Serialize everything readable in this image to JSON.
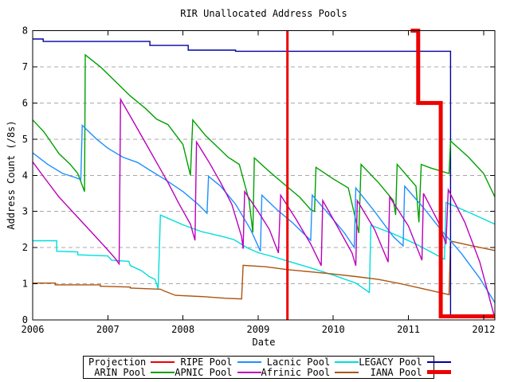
{
  "chart_data": {
    "type": "line",
    "title": "RIR Unallocated Address Pools",
    "xlabel": "Date",
    "ylabel": "Address Count (/8s)",
    "x_range": [
      2006,
      2012.15
    ],
    "y_range": [
      0,
      8
    ],
    "x_ticks": [
      2006,
      2007,
      2008,
      2009,
      2010,
      2011,
      2012
    ],
    "y_ticks": [
      0,
      1,
      2,
      3,
      4,
      5,
      6,
      7,
      8
    ],
    "grid": "horizontal-dashed-gray",
    "grid_color": "#a8a8a8",
    "legend_position": "bottom-center-boxed",
    "legend_layout": [
      [
        6,
        4,
        0,
        2
      ],
      [
        3,
        5,
        1,
        7
      ]
    ],
    "series": [
      {
        "name": "Lacnic Pool",
        "color": "#00dddd",
        "width": 1.4,
        "points": [
          [
            2006,
            2.19
          ],
          [
            2006.32,
            2.19
          ],
          [
            2006.32,
            1.9
          ],
          [
            2006.6,
            1.88
          ],
          [
            2006.6,
            1.8
          ],
          [
            2007,
            1.77
          ],
          [
            2007.05,
            1.65
          ],
          [
            2007.28,
            1.62
          ],
          [
            2007.3,
            1.5
          ],
          [
            2007.45,
            1.36
          ],
          [
            2007.55,
            1.2
          ],
          [
            2007.63,
            1.12
          ],
          [
            2007.67,
            0.86
          ],
          [
            2007.7,
            2.9
          ],
          [
            2008,
            2.63
          ],
          [
            2008.25,
            2.44
          ],
          [
            2008.5,
            2.32
          ],
          [
            2008.68,
            2.22
          ],
          [
            2008.85,
            2.0
          ],
          [
            2009,
            1.86
          ],
          [
            2009.2,
            1.75
          ],
          [
            2009.39,
            1.63
          ],
          [
            2009.7,
            1.44
          ],
          [
            2010,
            1.24
          ],
          [
            2010.3,
            1.02
          ],
          [
            2010.48,
            0.76
          ],
          [
            2010.5,
            2.62
          ],
          [
            2010.8,
            2.38
          ],
          [
            2011.1,
            2.1
          ],
          [
            2011.3,
            1.88
          ],
          [
            2011.48,
            1.68
          ],
          [
            2011.5,
            3.25
          ],
          [
            2011.8,
            2.98
          ],
          [
            2012.15,
            2.65
          ]
        ]
      },
      {
        "name": "Afrinic Pool",
        "color": "#ad5410",
        "width": 1.4,
        "points": [
          [
            2006,
            1.02
          ],
          [
            2006.3,
            1.02
          ],
          [
            2006.3,
            0.97
          ],
          [
            2006.9,
            0.97
          ],
          [
            2006.9,
            0.93
          ],
          [
            2007.3,
            0.91
          ],
          [
            2007.3,
            0.88
          ],
          [
            2007.7,
            0.85
          ],
          [
            2007.75,
            0.8
          ],
          [
            2007.9,
            0.68
          ],
          [
            2008.3,
            0.64
          ],
          [
            2008.55,
            0.6
          ],
          [
            2008.78,
            0.58
          ],
          [
            2008.8,
            1.51
          ],
          [
            2009.1,
            1.47
          ],
          [
            2009.39,
            1.39
          ],
          [
            2009.7,
            1.33
          ],
          [
            2010,
            1.27
          ],
          [
            2010.3,
            1.2
          ],
          [
            2010.6,
            1.12
          ],
          [
            2010.9,
            1.0
          ],
          [
            2011.2,
            0.86
          ],
          [
            2011.54,
            0.7
          ],
          [
            2011.56,
            2.18
          ],
          [
            2011.8,
            2.07
          ],
          [
            2012.15,
            1.92
          ]
        ]
      },
      {
        "name": "LEGACY Pool",
        "color": "#0000a0",
        "width": 1.4,
        "points": [
          [
            2006,
            7.77
          ],
          [
            2006.14,
            7.77
          ],
          [
            2006.14,
            7.7
          ],
          [
            2007.56,
            7.7
          ],
          [
            2007.56,
            7.59
          ],
          [
            2008.07,
            7.59
          ],
          [
            2008.07,
            7.46
          ],
          [
            2008.7,
            7.46
          ],
          [
            2008.7,
            7.43
          ],
          [
            2011.56,
            7.43
          ],
          [
            2011.56,
            0.12
          ],
          [
            2012.15,
            0.12
          ]
        ]
      },
      {
        "name": "ARIN Pool",
        "color": "#00a000",
        "width": 1.4,
        "points": [
          [
            2006,
            5.53
          ],
          [
            2006.15,
            5.2
          ],
          [
            2006.2,
            5.05
          ],
          [
            2006.35,
            4.6
          ],
          [
            2006.5,
            4.3
          ],
          [
            2006.6,
            4.05
          ],
          [
            2006.69,
            3.55
          ],
          [
            2006.7,
            7.33
          ],
          [
            2006.9,
            7.0
          ],
          [
            2007.05,
            6.7
          ],
          [
            2007.3,
            6.19
          ],
          [
            2007.5,
            5.85
          ],
          [
            2007.65,
            5.55
          ],
          [
            2007.8,
            5.4
          ],
          [
            2008,
            4.85
          ],
          [
            2008.1,
            4.0
          ],
          [
            2008.13,
            5.53
          ],
          [
            2008.3,
            5.1
          ],
          [
            2008.45,
            4.8
          ],
          [
            2008.6,
            4.5
          ],
          [
            2008.75,
            4.3
          ],
          [
            2008.88,
            3.3
          ],
          [
            2008.93,
            2.42
          ],
          [
            2008.95,
            4.48
          ],
          [
            2009.15,
            4.1
          ],
          [
            2009.35,
            3.75
          ],
          [
            2009.55,
            3.4
          ],
          [
            2009.7,
            3.05
          ],
          [
            2009.75,
            3.0
          ],
          [
            2009.77,
            4.22
          ],
          [
            2010,
            3.9
          ],
          [
            2010.2,
            3.65
          ],
          [
            2010.34,
            2.4
          ],
          [
            2010.37,
            4.3
          ],
          [
            2010.6,
            3.8
          ],
          [
            2010.8,
            3.3
          ],
          [
            2010.83,
            2.9
          ],
          [
            2010.85,
            4.3
          ],
          [
            2011.1,
            3.7
          ],
          [
            2011.14,
            2.7
          ],
          [
            2011.17,
            4.3
          ],
          [
            2011.3,
            4.2
          ],
          [
            2011.54,
            4.05
          ],
          [
            2011.56,
            4.95
          ],
          [
            2011.8,
            4.5
          ],
          [
            2012,
            4.05
          ],
          [
            2012.15,
            3.4
          ]
        ]
      },
      {
        "name": "RIPE Pool",
        "color": "#1e90ff",
        "width": 1.4,
        "points": [
          [
            2006,
            4.62
          ],
          [
            2006.2,
            4.3
          ],
          [
            2006.4,
            4.05
          ],
          [
            2006.55,
            3.95
          ],
          [
            2006.64,
            3.88
          ],
          [
            2006.66,
            5.38
          ],
          [
            2006.85,
            5.0
          ],
          [
            2007,
            4.75
          ],
          [
            2007.2,
            4.5
          ],
          [
            2007.4,
            4.35
          ],
          [
            2007.55,
            4.15
          ],
          [
            2007.75,
            3.9
          ],
          [
            2008,
            3.55
          ],
          [
            2008.2,
            3.2
          ],
          [
            2008.32,
            2.95
          ],
          [
            2008.34,
            3.97
          ],
          [
            2008.5,
            3.7
          ],
          [
            2008.7,
            3.2
          ],
          [
            2008.9,
            2.5
          ],
          [
            2009.03,
            1.9
          ],
          [
            2009.05,
            3.45
          ],
          [
            2009.25,
            3.05
          ],
          [
            2009.45,
            2.7
          ],
          [
            2009.65,
            2.3
          ],
          [
            2009.7,
            2.2
          ],
          [
            2009.72,
            3.45
          ],
          [
            2009.95,
            2.9
          ],
          [
            2010.15,
            2.4
          ],
          [
            2010.28,
            2.0
          ],
          [
            2010.3,
            3.65
          ],
          [
            2010.55,
            3.0
          ],
          [
            2010.8,
            2.3
          ],
          [
            2010.93,
            2.05
          ],
          [
            2010.95,
            3.7
          ],
          [
            2011.2,
            3.1
          ],
          [
            2011.45,
            2.45
          ],
          [
            2011.7,
            1.85
          ],
          [
            2011.95,
            1.15
          ],
          [
            2012.15,
            0.48
          ]
        ]
      },
      {
        "name": "APNIC Pool",
        "color": "#bb00bb",
        "width": 1.4,
        "points": [
          [
            2006,
            4.37
          ],
          [
            2006.15,
            3.95
          ],
          [
            2006.35,
            3.4
          ],
          [
            2006.55,
            2.95
          ],
          [
            2006.75,
            2.5
          ],
          [
            2006.95,
            2.05
          ],
          [
            2007.1,
            1.7
          ],
          [
            2007.15,
            1.55
          ],
          [
            2007.17,
            6.1
          ],
          [
            2007.35,
            5.45
          ],
          [
            2007.5,
            4.9
          ],
          [
            2007.65,
            4.35
          ],
          [
            2007.8,
            3.8
          ],
          [
            2007.95,
            3.2
          ],
          [
            2008.1,
            2.65
          ],
          [
            2008.16,
            2.2
          ],
          [
            2008.18,
            4.92
          ],
          [
            2008.35,
            4.35
          ],
          [
            2008.5,
            3.8
          ],
          [
            2008.65,
            3.2
          ],
          [
            2008.78,
            2.3
          ],
          [
            2008.8,
            1.97
          ],
          [
            2008.82,
            3.55
          ],
          [
            2009,
            3.0
          ],
          [
            2009.15,
            2.5
          ],
          [
            2009.27,
            1.85
          ],
          [
            2009.3,
            3.45
          ],
          [
            2009.5,
            2.8
          ],
          [
            2009.7,
            2.1
          ],
          [
            2009.84,
            1.5
          ],
          [
            2009.86,
            3.3
          ],
          [
            2010.05,
            2.6
          ],
          [
            2010.25,
            1.85
          ],
          [
            2010.3,
            1.5
          ],
          [
            2010.32,
            3.3
          ],
          [
            2010.55,
            2.5
          ],
          [
            2010.73,
            1.6
          ],
          [
            2010.75,
            3.4
          ],
          [
            2011,
            2.6
          ],
          [
            2011.18,
            1.65
          ],
          [
            2011.2,
            3.5
          ],
          [
            2011.4,
            2.7
          ],
          [
            2011.5,
            2.1
          ],
          [
            2011.53,
            3.6
          ],
          [
            2011.75,
            2.7
          ],
          [
            2011.95,
            1.6
          ],
          [
            2012.14,
            0.12
          ]
        ]
      },
      {
        "name": "Projection",
        "color": "#ee0000",
        "width": 3,
        "points": [
          [
            2009.39,
            0
          ],
          [
            2009.39,
            8
          ]
        ]
      },
      {
        "name": "IANA Pool",
        "color": "#ee0000",
        "width": 5,
        "points": [
          [
            2011.03,
            8.0
          ],
          [
            2011.13,
            8.0
          ],
          [
            2011.13,
            6.0
          ],
          [
            2011.43,
            6.0
          ],
          [
            2011.43,
            0.1
          ],
          [
            2012.15,
            0.1
          ]
        ]
      }
    ]
  }
}
